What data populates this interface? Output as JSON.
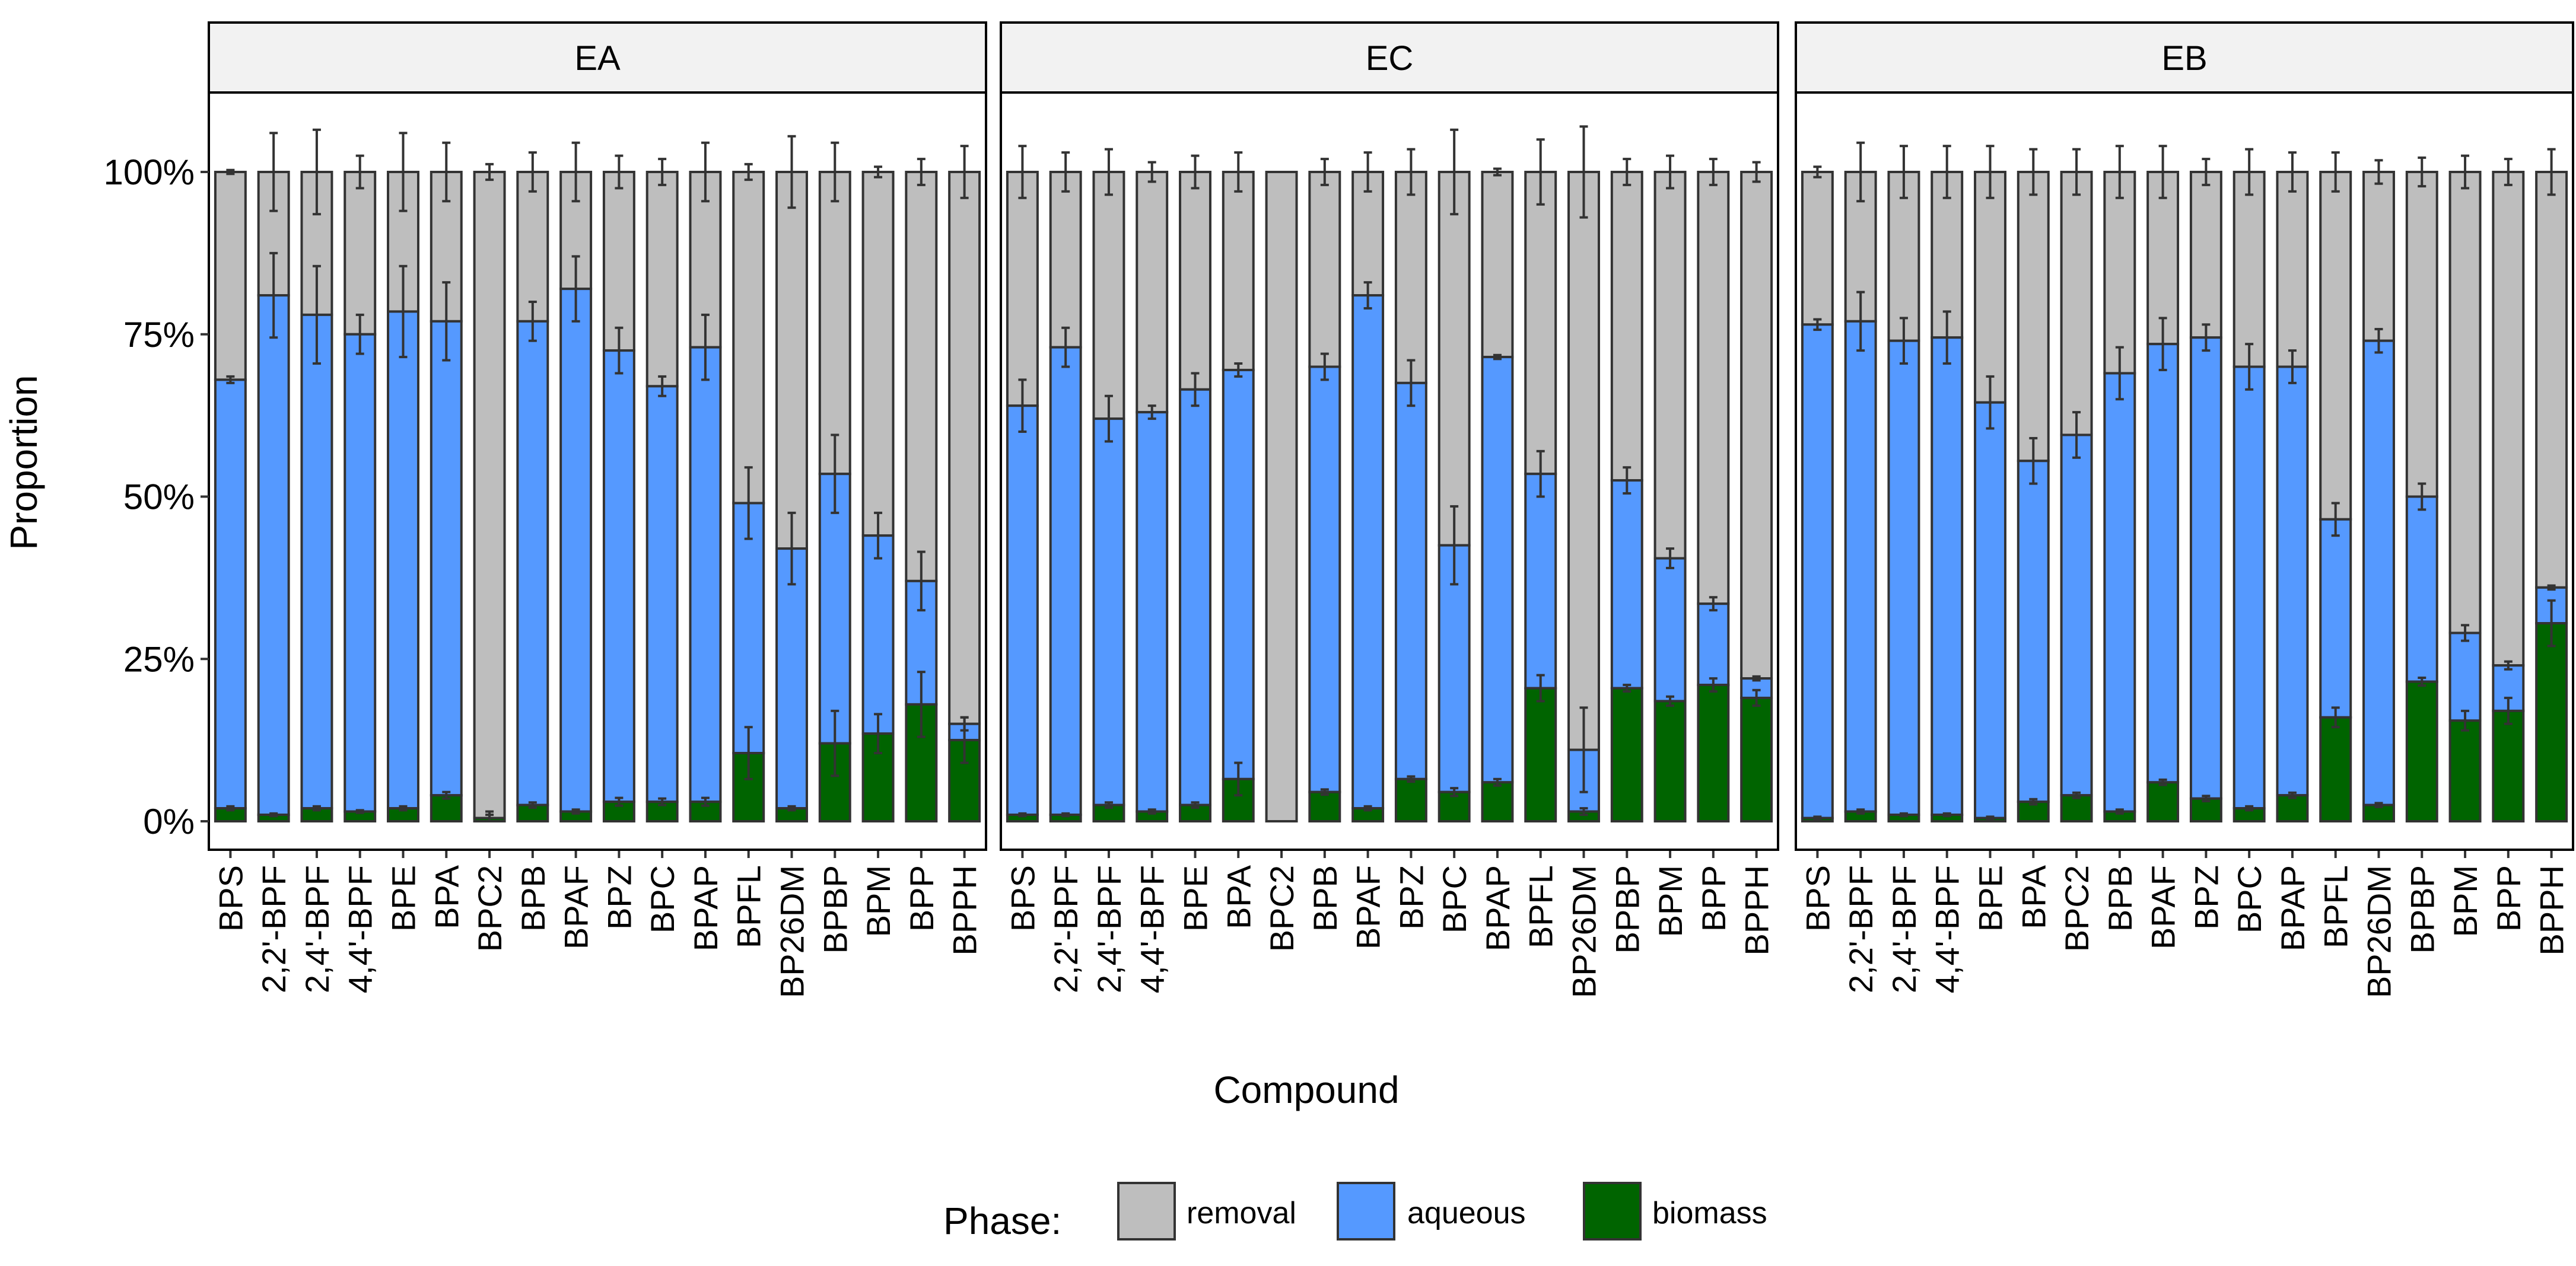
{
  "chart_data": {
    "type": "bar",
    "stacked": true,
    "ylabel": "Proportion",
    "xlabel": "Compound",
    "ylim": [
      0,
      1.05
    ],
    "yticks": [
      "0%",
      "25%",
      "50%",
      "75%",
      "100%"
    ],
    "legend": {
      "title": "Phase:",
      "position": "bottom",
      "entries": [
        {
          "name": "removal",
          "color": "#BEBEBE"
        },
        {
          "name": "aqueous",
          "color": "#5599FF"
        },
        {
          "name": "biomass",
          "color": "#006400"
        }
      ]
    },
    "categories": [
      "BPS",
      "2,2'-BPF",
      "2,4'-BPF",
      "4,4'-BPF",
      "BPE",
      "BPA",
      "BPC2",
      "BPB",
      "BPAF",
      "BPZ",
      "BPC",
      "BPAP",
      "BPFL",
      "BP26DM",
      "BPBP",
      "BPM",
      "BPP",
      "BPPH"
    ],
    "panels": [
      {
        "label": "EA",
        "biomass": [
          0.02,
          0.01,
          0.02,
          0.015,
          0.02,
          0.04,
          0.005,
          0.025,
          0.015,
          0.03,
          0.03,
          0.03,
          0.105,
          0.02,
          0.12,
          0.135,
          0.18,
          0.125
        ],
        "biomass_err": [
          0.003,
          0.002,
          0.003,
          0.002,
          0.003,
          0.005,
          0.01,
          0.004,
          0.003,
          0.006,
          0.005,
          0.006,
          0.04,
          0.003,
          0.05,
          0.03,
          0.05,
          0.035
        ],
        "aqueous_top": [
          0.68,
          0.81,
          0.78,
          0.75,
          0.785,
          0.77,
          0.005,
          0.77,
          0.82,
          0.725,
          0.67,
          0.73,
          0.49,
          0.42,
          0.535,
          0.44,
          0.37,
          0.15
        ],
        "aqueous_err": [
          0.005,
          0.065,
          0.075,
          0.03,
          0.07,
          0.06,
          0.005,
          0.03,
          0.05,
          0.035,
          0.015,
          0.05,
          0.055,
          0.055,
          0.06,
          0.035,
          0.045,
          0.01
        ],
        "removal_err": [
          0.003,
          0.06,
          0.065,
          0.025,
          0.06,
          0.045,
          0.012,
          0.03,
          0.045,
          0.025,
          0.02,
          0.045,
          0.012,
          0.055,
          0.045,
          0.008,
          0.02,
          0.04
        ]
      },
      {
        "label": "EC",
        "biomass": [
          0.01,
          0.01,
          0.025,
          0.015,
          0.025,
          0.065,
          0.0,
          0.045,
          0.02,
          0.065,
          0.045,
          0.06,
          0.205,
          0.015,
          0.205,
          0.185,
          0.21,
          0.19
        ],
        "biomass_err": [
          0.002,
          0.002,
          0.004,
          0.003,
          0.004,
          0.025,
          0.0,
          0.004,
          0.003,
          0.004,
          0.006,
          0.005,
          0.02,
          0.005,
          0.005,
          0.007,
          0.01,
          0.012
        ],
        "aqueous_top": [
          0.64,
          0.73,
          0.62,
          0.63,
          0.665,
          0.695,
          0.0,
          0.7,
          0.81,
          0.675,
          0.425,
          0.715,
          0.535,
          0.11,
          0.525,
          0.405,
          0.335,
          0.22
        ],
        "aqueous_err": [
          0.04,
          0.03,
          0.035,
          0.01,
          0.025,
          0.01,
          0.0,
          0.02,
          0.02,
          0.035,
          0.06,
          0.003,
          0.035,
          0.065,
          0.02,
          0.015,
          0.01,
          0.003
        ],
        "removal_err": [
          0.04,
          0.03,
          0.035,
          0.015,
          0.025,
          0.03,
          0.0,
          0.02,
          0.03,
          0.035,
          0.065,
          0.005,
          0.05,
          0.07,
          0.02,
          0.025,
          0.02,
          0.015
        ]
      },
      {
        "label": "EB",
        "biomass": [
          0.005,
          0.015,
          0.01,
          0.01,
          0.005,
          0.03,
          0.04,
          0.015,
          0.06,
          0.035,
          0.02,
          0.04,
          0.16,
          0.025,
          0.215,
          0.155,
          0.17,
          0.305
        ],
        "biomass_err": [
          0.002,
          0.003,
          0.002,
          0.002,
          0.002,
          0.004,
          0.004,
          0.003,
          0.004,
          0.004,
          0.003,
          0.004,
          0.015,
          0.003,
          0.006,
          0.015,
          0.02,
          0.035
        ],
        "aqueous_top": [
          0.765,
          0.77,
          0.74,
          0.745,
          0.645,
          0.555,
          0.595,
          0.69,
          0.735,
          0.745,
          0.7,
          0.7,
          0.465,
          0.74,
          0.5,
          0.29,
          0.24,
          0.36
        ],
        "aqueous_err": [
          0.008,
          0.045,
          0.035,
          0.04,
          0.04,
          0.035,
          0.035,
          0.04,
          0.04,
          0.02,
          0.035,
          0.025,
          0.025,
          0.018,
          0.02,
          0.012,
          0.006,
          0.003
        ],
        "removal_err": [
          0.008,
          0.045,
          0.04,
          0.04,
          0.04,
          0.035,
          0.035,
          0.04,
          0.04,
          0.02,
          0.035,
          0.03,
          0.03,
          0.018,
          0.022,
          0.025,
          0.02,
          0.035
        ]
      }
    ]
  }
}
